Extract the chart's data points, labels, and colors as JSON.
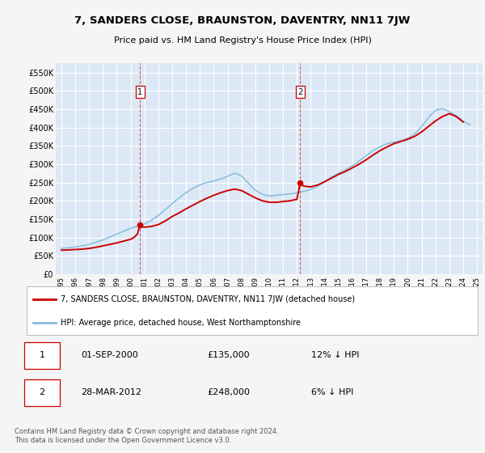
{
  "title": "7, SANDERS CLOSE, BRAUNSTON, DAVENTRY, NN11 7JW",
  "subtitle": "Price paid vs. HM Land Registry's House Price Index (HPI)",
  "outer_bg": "#f5f5f5",
  "plot_bg_color": "#dce8f5",
  "grid_color": "#ffffff",
  "red_line_color": "#cc0000",
  "blue_line_color": "#88bbdd",
  "ylim": [
    0,
    575000
  ],
  "yticks": [
    0,
    50000,
    100000,
    150000,
    200000,
    250000,
    300000,
    350000,
    400000,
    450000,
    500000,
    550000
  ],
  "ytick_labels": [
    "£0",
    "£50K",
    "£100K",
    "£150K",
    "£200K",
    "£250K",
    "£300K",
    "£350K",
    "£400K",
    "£450K",
    "£500K",
    "£550K"
  ],
  "sale1_year": 2000.67,
  "sale1_price": 135000,
  "sale1_label": "1",
  "sale2_year": 2012.23,
  "sale2_price": 248000,
  "sale2_label": "2",
  "legend_red_label": "7, SANDERS CLOSE, BRAUNSTON, DAVENTRY, NN11 7JW (detached house)",
  "legend_blue_label": "HPI: Average price, detached house, West Northamptonshire",
  "annotation1_date": "01-SEP-2000",
  "annotation1_price": "£135,000",
  "annotation1_hpi": "12% ↓ HPI",
  "annotation2_date": "28-MAR-2012",
  "annotation2_price": "£248,000",
  "annotation2_hpi": "6% ↓ HPI",
  "footer": "Contains HM Land Registry data © Crown copyright and database right 2024.\nThis data is licensed under the Open Government Licence v3.0.",
  "hpi_years": [
    1995,
    1995.25,
    1995.5,
    1995.75,
    1996,
    1996.25,
    1996.5,
    1996.75,
    1997,
    1997.25,
    1997.5,
    1997.75,
    1998,
    1998.25,
    1998.5,
    1998.75,
    1999,
    1999.25,
    1999.5,
    1999.75,
    2000,
    2000.25,
    2000.5,
    2000.75,
    2001,
    2001.25,
    2001.5,
    2001.75,
    2002,
    2002.25,
    2002.5,
    2002.75,
    2003,
    2003.25,
    2003.5,
    2003.75,
    2004,
    2004.25,
    2004.5,
    2004.75,
    2005,
    2005.25,
    2005.5,
    2005.75,
    2006,
    2006.25,
    2006.5,
    2006.75,
    2007,
    2007.25,
    2007.5,
    2007.75,
    2008,
    2008.25,
    2008.5,
    2008.75,
    2009,
    2009.25,
    2009.5,
    2009.75,
    2010,
    2010.25,
    2010.5,
    2010.75,
    2011,
    2011.25,
    2011.5,
    2011.75,
    2012,
    2012.25,
    2012.5,
    2012.75,
    2013,
    2013.25,
    2013.5,
    2013.75,
    2014,
    2014.25,
    2014.5,
    2014.75,
    2015,
    2015.25,
    2015.5,
    2015.75,
    2016,
    2016.25,
    2016.5,
    2016.75,
    2017,
    2017.25,
    2017.5,
    2017.75,
    2018,
    2018.25,
    2018.5,
    2018.75,
    2019,
    2019.25,
    2019.5,
    2019.75,
    2020,
    2020.25,
    2020.5,
    2020.75,
    2021,
    2021.25,
    2021.5,
    2021.75,
    2022,
    2022.25,
    2022.5,
    2022.75,
    2023,
    2023.25,
    2023.5,
    2023.75,
    2024,
    2024.25,
    2024.5
  ],
  "hpi_values": [
    70000,
    71000,
    72000,
    73000,
    74000,
    75500,
    77000,
    79000,
    81000,
    84000,
    87000,
    90000,
    93000,
    97000,
    101000,
    105000,
    109000,
    113000,
    117000,
    121000,
    125000,
    128000,
    131000,
    134000,
    137000,
    142000,
    147000,
    153000,
    160000,
    168000,
    176000,
    184000,
    192000,
    200000,
    208000,
    215000,
    222000,
    228000,
    234000,
    239000,
    243000,
    247000,
    250000,
    252000,
    254000,
    257000,
    260000,
    263000,
    267000,
    271000,
    275000,
    272000,
    268000,
    258000,
    248000,
    238000,
    229000,
    223000,
    218000,
    215000,
    213000,
    214000,
    215000,
    216000,
    217000,
    218000,
    219000,
    220000,
    222000,
    224000,
    226000,
    228000,
    231000,
    235000,
    240000,
    246000,
    253000,
    259000,
    265000,
    270000,
    275000,
    280000,
    285000,
    290000,
    296000,
    302000,
    309000,
    316000,
    323000,
    330000,
    337000,
    342000,
    347000,
    352000,
    356000,
    358000,
    360000,
    362000,
    364000,
    367000,
    371000,
    376000,
    383000,
    392000,
    403000,
    415000,
    427000,
    438000,
    446000,
    450000,
    451000,
    448000,
    443000,
    438000,
    432000,
    425000,
    418000,
    412000,
    408000
  ],
  "red_years": [
    1995,
    1995.5,
    1996,
    1996.5,
    1997,
    1997.5,
    1998,
    1998.5,
    1999,
    1999.5,
    2000,
    2000.25,
    2000.5,
    2000.67,
    2000.75,
    2001,
    2001.5,
    2002,
    2002.5,
    2003,
    2003.5,
    2004,
    2004.5,
    2005,
    2005.5,
    2006,
    2006.5,
    2007,
    2007.5,
    2008,
    2008.5,
    2009,
    2009.5,
    2010,
    2010.5,
    2011,
    2011.5,
    2012,
    2012.23,
    2012.5,
    2013,
    2013.5,
    2014,
    2014.5,
    2015,
    2015.5,
    2016,
    2016.5,
    2017,
    2017.5,
    2018,
    2018.5,
    2019,
    2019.5,
    2020,
    2020.5,
    2021,
    2021.5,
    2022,
    2022.5,
    2023,
    2023.5,
    2024
  ],
  "red_values": [
    65000,
    66000,
    67000,
    68000,
    70000,
    73000,
    77000,
    81000,
    85000,
    90000,
    95000,
    100000,
    110000,
    135000,
    130000,
    128000,
    130000,
    135000,
    145000,
    157000,
    167000,
    178000,
    188000,
    198000,
    207000,
    215000,
    222000,
    228000,
    232000,
    228000,
    218000,
    208000,
    200000,
    196000,
    196000,
    198000,
    200000,
    204000,
    248000,
    240000,
    238000,
    243000,
    252000,
    262000,
    272000,
    280000,
    290000,
    300000,
    312000,
    325000,
    337000,
    347000,
    356000,
    362000,
    368000,
    376000,
    388000,
    403000,
    418000,
    430000,
    438000,
    430000,
    415000
  ]
}
